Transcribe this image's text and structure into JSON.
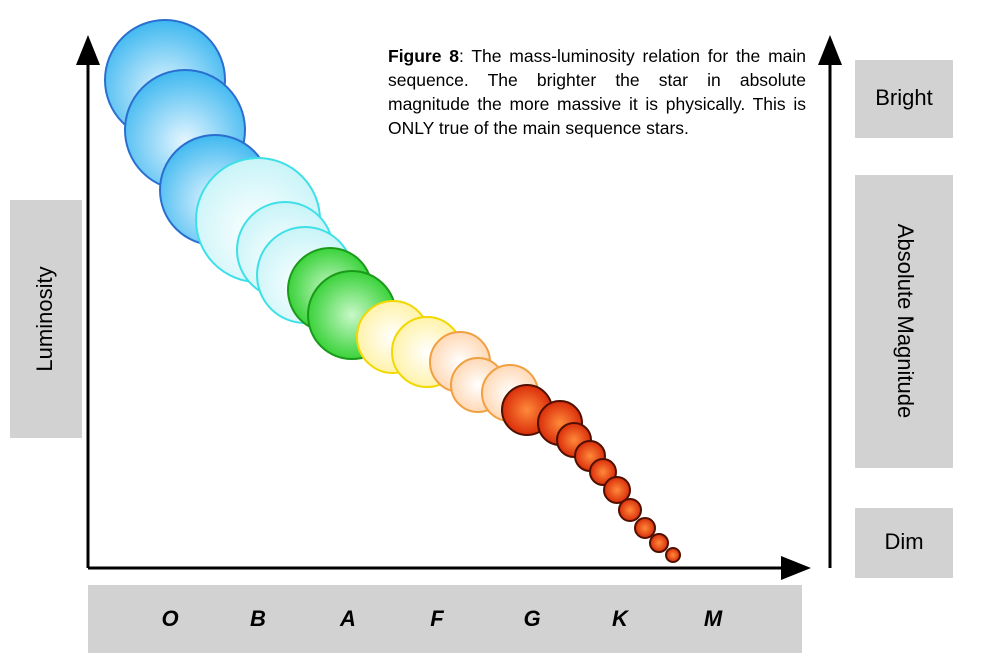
{
  "caption": {
    "label": "Figure 8",
    "text": ": The mass-luminosity relation for the main sequence. The brighter the star in absolute magnitude the more massive it is physically. This is ONLY true of the main sequence stars."
  },
  "y_axis_label": "Luminosity",
  "right_labels": {
    "top": "Bright",
    "middle": "Absolute Magnitude",
    "bottom": "Dim"
  },
  "spectral_classes": [
    "O",
    "B",
    "A",
    "F",
    "G",
    "K",
    "M"
  ]
}
